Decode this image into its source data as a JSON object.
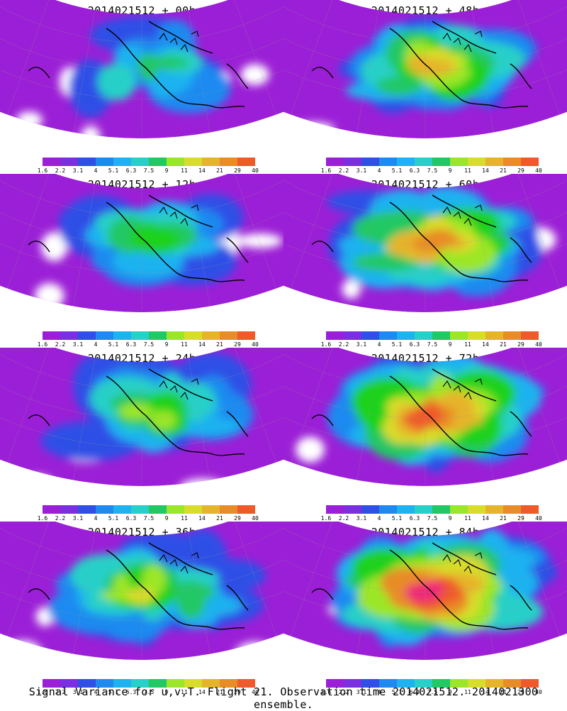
{
  "footer": "Signal Variance for u,v,T. Flight 21. Observation time 2014021512. 2014021300 ensemble.",
  "colorbar": {
    "labels": [
      "1.6",
      "2.2",
      "3.1",
      "4",
      "5.1",
      "6.3",
      "7.5",
      "9",
      "11",
      "14",
      "21",
      "29",
      "40"
    ],
    "colors": [
      "#9b1fd6",
      "#7a2fe0",
      "#2f4fe6",
      "#1e8af0",
      "#1fb2f0",
      "#27d0c8",
      "#22c864",
      "#1ed21e",
      "#9be628",
      "#d8dc2a",
      "#e6b42a",
      "#e88c28",
      "#ee5a2a",
      "#f02878",
      "#f01a6c"
    ]
  },
  "panels": [
    {
      "title": "2014021512 + 00h",
      "intensity": 0.15
    },
    {
      "title": "2014021512 + 48h",
      "intensity": 0.62
    },
    {
      "title": "2014021512 + 12h",
      "intensity": 0.28
    },
    {
      "title": "2014021512 + 60h",
      "intensity": 0.72
    },
    {
      "title": "2014021512 + 24h",
      "intensity": 0.42
    },
    {
      "title": "2014021512 + 72h",
      "intensity": 0.8
    },
    {
      "title": "2014021512 + 36h",
      "intensity": 0.52
    },
    {
      "title": "2014021512 + 84h",
      "intensity": 0.86
    }
  ]
}
